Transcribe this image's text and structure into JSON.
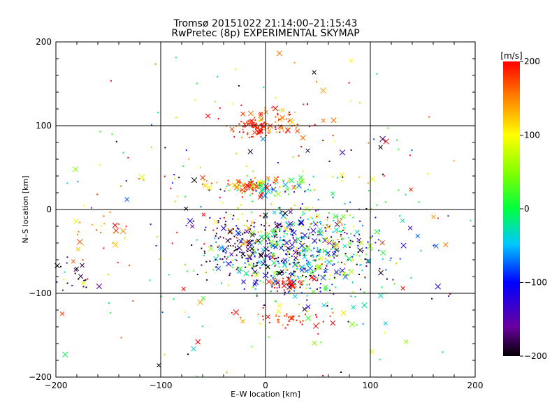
{
  "chart_data": {
    "type": "scatter",
    "title": "Tromsø 20151022 21:14:00–21:15:43",
    "subtitle": "RwPretec (8p) EXPERIMENTAL SKYMAP",
    "xlabel": "E–W location [km]",
    "ylabel": "N–S location [km]",
    "xlim": [
      -200,
      200
    ],
    "ylim": [
      -200,
      200
    ],
    "x_ticks": [
      "−200",
      "−100",
      "0",
      "100",
      "200"
    ],
    "y_ticks": [
      "−200",
      "−100",
      "0",
      "100",
      "200"
    ],
    "grid": true,
    "colorbar": {
      "label": "[m/s]",
      "min": -200,
      "max": 200,
      "ticks": [
        "200",
        "100",
        "0",
        "−100",
        "−200"
      ]
    },
    "markers": [
      "dot",
      "x"
    ],
    "clusters": [
      {
        "x": -8,
        "y": 95,
        "sx": 10,
        "sy": 5,
        "n": 60,
        "v": 190,
        "vs": 15
      },
      {
        "x": 5,
        "y": 105,
        "sx": 25,
        "sy": 10,
        "n": 70,
        "v": 170,
        "vs": 40
      },
      {
        "x": -10,
        "y": 28,
        "sx": 12,
        "sy": 5,
        "n": 55,
        "v": 180,
        "vs": 25
      },
      {
        "x": 10,
        "y": 28,
        "sx": 18,
        "sy": 6,
        "n": 60,
        "v": 20,
        "vs": 60
      },
      {
        "x": -30,
        "y": 30,
        "sx": 20,
        "sy": 6,
        "n": 30,
        "v": 160,
        "vs": 50
      },
      {
        "x": 22,
        "y": -88,
        "sx": 8,
        "sy": 4,
        "n": 40,
        "v": 195,
        "vs": 10
      },
      {
        "x": 25,
        "y": -130,
        "sx": 20,
        "sy": 6,
        "n": 45,
        "v": 170,
        "vs": 40
      },
      {
        "x": 35,
        "y": -50,
        "sx": 40,
        "sy": 28,
        "n": 700,
        "v": -40,
        "vs": 110
      },
      {
        "x": -20,
        "y": -40,
        "sx": 25,
        "sy": 20,
        "n": 120,
        "v": -170,
        "vs": 40
      },
      {
        "x": -155,
        "y": -30,
        "sx": 15,
        "sy": 12,
        "n": 25,
        "v": 140,
        "vs": 40
      },
      {
        "x": -180,
        "y": -80,
        "sx": 15,
        "sy": 10,
        "n": 20,
        "v": -180,
        "vs": 30
      },
      {
        "x": 0,
        "y": 0,
        "sx": 110,
        "sy": 110,
        "n": 260,
        "v": 40,
        "vs": 140
      }
    ]
  }
}
